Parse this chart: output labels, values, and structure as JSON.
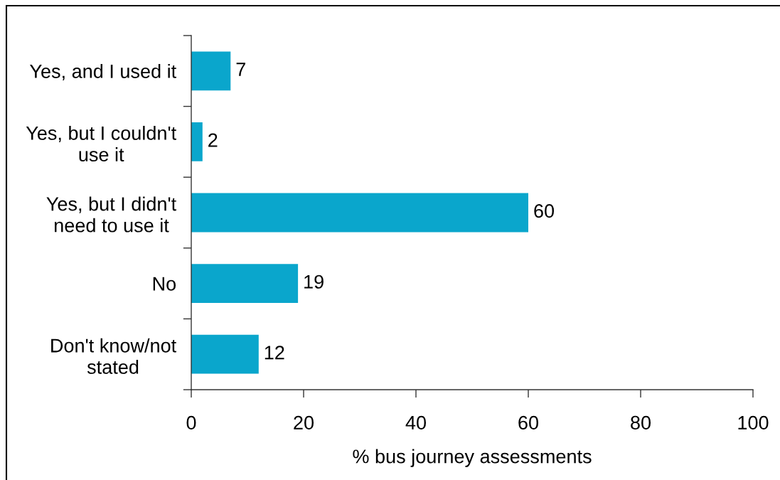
{
  "chart_data": {
    "type": "bar",
    "orientation": "horizontal",
    "categories": [
      "Yes, and I used it",
      "Yes, but I couldn't\nuse it",
      "Yes, but I didn't\nneed to use it",
      "No",
      "Don't know/not\nstated"
    ],
    "values": [
      7,
      2,
      60,
      19,
      12
    ],
    "color": "#0aa6cc",
    "xlabel": "% bus journey assessments",
    "xlim": [
      0,
      100
    ],
    "xticks": [
      0,
      20,
      40,
      60,
      80,
      100
    ],
    "data_labels": true,
    "grid": false
  }
}
